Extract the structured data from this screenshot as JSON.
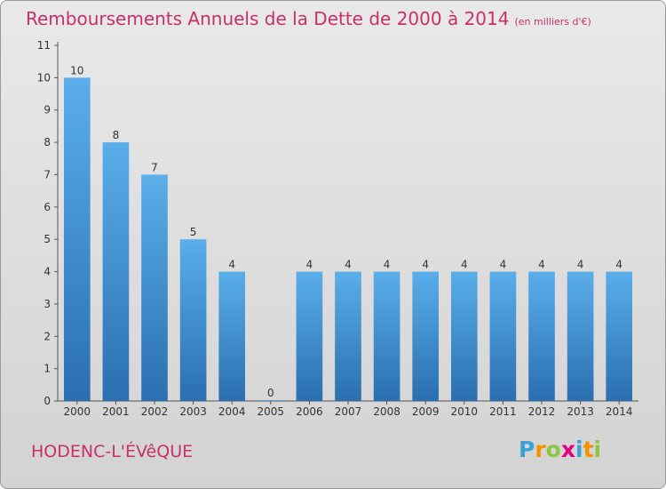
{
  "page": {
    "title": "Remboursements Annuels de la Dette de 2000 à 2014",
    "unit": "(en milliers d'€)",
    "commune": "HODENC-L'ÉVêQUE",
    "logo": {
      "letters": [
        "P",
        "r",
        "o",
        "x",
        "i",
        "t",
        "i"
      ],
      "colors": [
        "#3aa0d8",
        "#f29400",
        "#8dc63f",
        "#e3007e",
        "#3aa0d8",
        "#f29400",
        "#8dc63f"
      ]
    }
  },
  "chart_data": {
    "type": "bar",
    "categories": [
      "2000",
      "2001",
      "2002",
      "2003",
      "2004",
      "2005",
      "2006",
      "2007",
      "2008",
      "2009",
      "2010",
      "2011",
      "2012",
      "2013",
      "2014"
    ],
    "values": [
      10,
      8,
      7,
      5,
      4,
      0,
      4,
      4,
      4,
      4,
      4,
      4,
      4,
      4,
      4
    ],
    "data_labels": [
      "10",
      "8",
      "7",
      "5",
      "4",
      "0",
      "4",
      "4",
      "4",
      "4",
      "4",
      "4",
      "4",
      "4",
      "4"
    ],
    "yticks": [
      0,
      1,
      2,
      3,
      4,
      5,
      6,
      7,
      8,
      9,
      10,
      11
    ],
    "ylim": [
      0,
      11
    ],
    "grid": false,
    "legend": "none",
    "bar_color": "#3d8fd6"
  }
}
